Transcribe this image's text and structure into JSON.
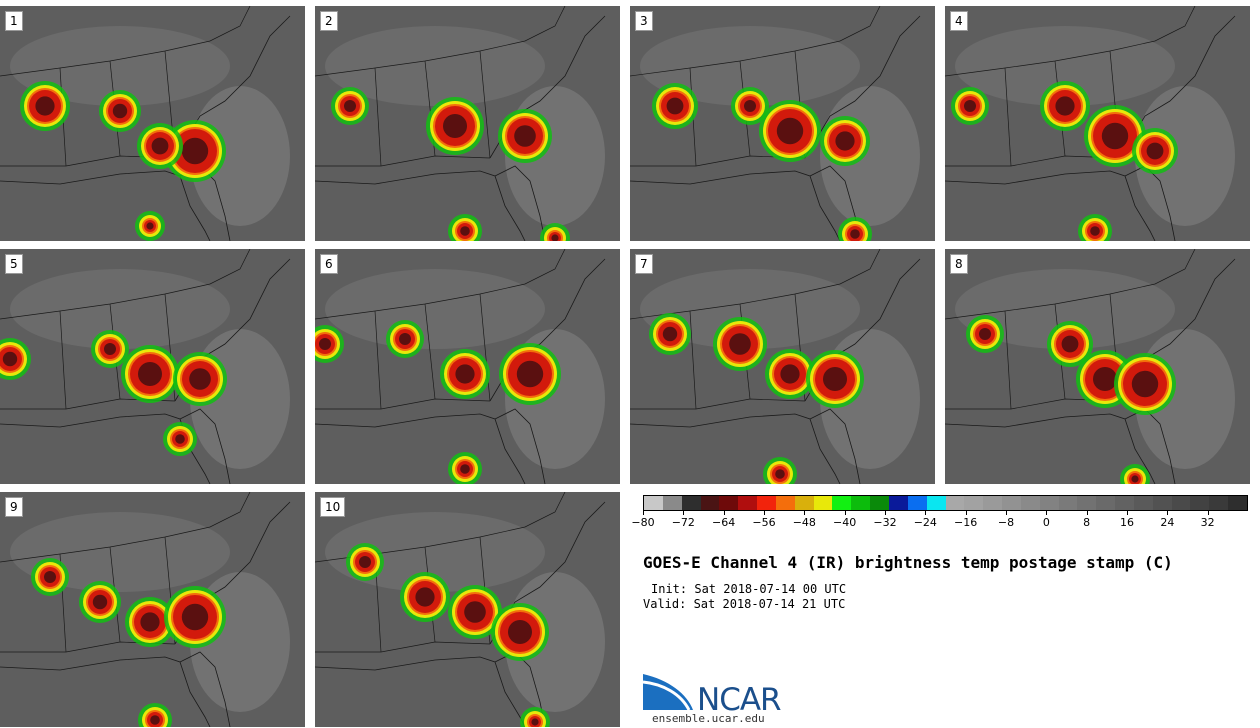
{
  "panels": [
    "1",
    "2",
    "3",
    "4",
    "5",
    "6",
    "7",
    "8",
    "9",
    "10"
  ],
  "colorbar": {
    "colors": [
      "#c8c8c8",
      "#8a8a8a",
      "#2e2e2e",
      "#4a1414",
      "#6e0a0a",
      "#b00e0e",
      "#f2230c",
      "#f46e0c",
      "#d9b00c",
      "#e8e80a",
      "#12f012",
      "#0cbc0c",
      "#0a8a0a",
      "#0a1a9a",
      "#0a6ef0",
      "#0ae6f0",
      "#a8a8a8",
      "#a2a2a2",
      "#9a9a9a",
      "#929292",
      "#8a8a8a",
      "#828282",
      "#7a7a7a",
      "#727272",
      "#6a6a6a",
      "#626262",
      "#5a5a5a",
      "#525252",
      "#4a4a4a",
      "#424242",
      "#3a3a3a",
      "#2e2e2e"
    ],
    "tick_labels": [
      "−80",
      "−72",
      "−64",
      "−56",
      "−48",
      "−40",
      "−32",
      "−24",
      "−16",
      "−8",
      "0",
      "8",
      "16",
      "24",
      "32"
    ],
    "range": [
      -80,
      40
    ]
  },
  "title": "GOES-E Channel 4 (IR) brightness temp postage stamp (C)",
  "init": "Init: Sat 2018-07-14 00 UTC",
  "valid": "Valid: Sat 2018-07-14 21 UTC",
  "logo": {
    "text": "NCAR",
    "url": "ensemble.ucar.edu"
  }
}
